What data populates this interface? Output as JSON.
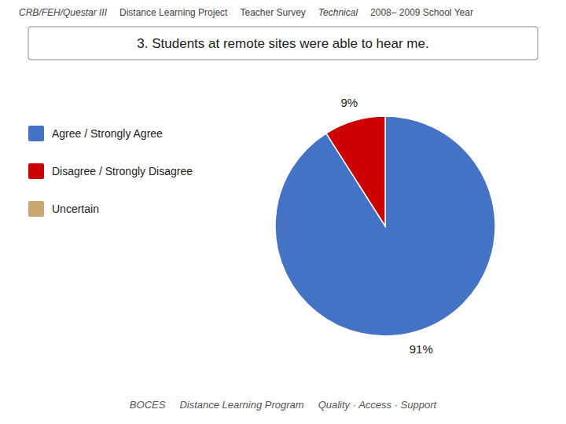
{
  "chart_data": {
    "type": "pie",
    "title": "3. Students at remote sites were able to hear me.",
    "annotations": [
      "CRB/FEH/Questar III",
      "Distance Learning Project",
      "Teacher Survey",
      "Technical",
      "2008– 2009 School Year",
      "BOCES",
      "Distance Learning Program",
      "Quality · Access · Support"
    ],
    "categories": [
      "Agree / Strongly Agree",
      "Disagree / Strongly Disagree",
      "Uncertain"
    ],
    "values": [
      91,
      9,
      0.0001
    ],
    "colors": [
      "#4472c4",
      "#cc0000",
      "#c8a86e"
    ],
    "data_labels": true,
    "value_labels": [
      "91%",
      "9%",
      null
    ],
    "legend": "left"
  }
}
